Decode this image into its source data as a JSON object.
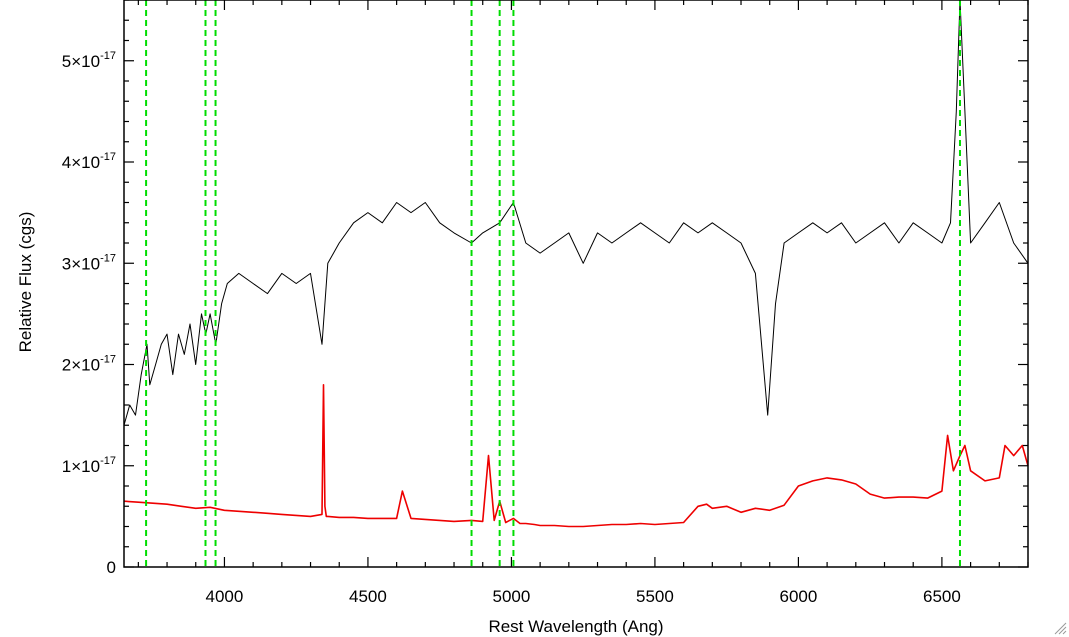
{
  "chart_data": {
    "type": "line",
    "title": "",
    "xlabel": "Rest Wavelength (Ang)",
    "ylabel": "Relative Flux (cgs)",
    "xlim": [
      3650,
      6800
    ],
    "ylim": [
      0,
      5.6e-17
    ],
    "x_ticks": [
      {
        "value": 4000,
        "label": "4000"
      },
      {
        "value": 4500,
        "label": "4500"
      },
      {
        "value": 5000,
        "label": "5000"
      },
      {
        "value": 5500,
        "label": "5500"
      },
      {
        "value": 6000,
        "label": "6000"
      },
      {
        "value": 6500,
        "label": "6500"
      }
    ],
    "y_ticks": [
      {
        "value": 0,
        "mantissa": "0",
        "exponent": ""
      },
      {
        "value": 1e-17,
        "mantissa": "1×10",
        "exponent": "-17"
      },
      {
        "value": 2e-17,
        "mantissa": "2×10",
        "exponent": "-17"
      },
      {
        "value": 3e-17,
        "mantissa": "3×10",
        "exponent": "-17"
      },
      {
        "value": 4e-17,
        "mantissa": "4×10",
        "exponent": "-17"
      },
      {
        "value": 5e-17,
        "mantissa": "5×10",
        "exponent": "-17"
      }
    ],
    "grid": false,
    "legend": "none",
    "vlines": {
      "color": "#00dd00",
      "style": "dashed",
      "x": [
        3727,
        3934,
        3969,
        4861,
        4959,
        5007,
        6563
      ]
    },
    "series": [
      {
        "color": "#000000",
        "x": [
          3650,
          3670,
          3690,
          3710,
          3730,
          3740,
          3760,
          3780,
          3800,
          3820,
          3840,
          3860,
          3880,
          3900,
          3920,
          3935,
          3950,
          3970,
          3990,
          4010,
          4050,
          4100,
          4150,
          4200,
          4250,
          4300,
          4340,
          4360,
          4400,
          4450,
          4500,
          4550,
          4600,
          4650,
          4700,
          4750,
          4800,
          4861,
          4900,
          4959,
          5007,
          5050,
          5100,
          5150,
          5200,
          5250,
          5300,
          5350,
          5400,
          5450,
          5500,
          5550,
          5600,
          5650,
          5700,
          5750,
          5800,
          5850,
          5893,
          5920,
          5950,
          6000,
          6050,
          6100,
          6150,
          6200,
          6250,
          6300,
          6350,
          6400,
          6450,
          6500,
          6530,
          6550,
          6563,
          6580,
          6600,
          6650,
          6700,
          6750,
          6800
        ],
        "y": [
          1.4e-17,
          1.6e-17,
          1.5e-17,
          1.9e-17,
          2.2e-17,
          1.8e-17,
          2e-17,
          2.2e-17,
          2.3e-17,
          1.9e-17,
          2.3e-17,
          2.1e-17,
          2.4e-17,
          2e-17,
          2.5e-17,
          2.3e-17,
          2.5e-17,
          2.2e-17,
          2.6e-17,
          2.8e-17,
          2.9e-17,
          2.8e-17,
          2.7e-17,
          2.9e-17,
          2.8e-17,
          2.9e-17,
          2.2e-17,
          3e-17,
          3.2e-17,
          3.4e-17,
          3.5e-17,
          3.4e-17,
          3.6e-17,
          3.5e-17,
          3.6e-17,
          3.4e-17,
          3.3e-17,
          3.2e-17,
          3.3e-17,
          3.4e-17,
          3.6e-17,
          3.2e-17,
          3.1e-17,
          3.2e-17,
          3.3e-17,
          3e-17,
          3.3e-17,
          3.2e-17,
          3.3e-17,
          3.4e-17,
          3.3e-17,
          3.2e-17,
          3.4e-17,
          3.3e-17,
          3.4e-17,
          3.3e-17,
          3.2e-17,
          2.9e-17,
          1.5e-17,
          2.6e-17,
          3.2e-17,
          3.3e-17,
          3.4e-17,
          3.3e-17,
          3.4e-17,
          3.2e-17,
          3.3e-17,
          3.4e-17,
          3.2e-17,
          3.4e-17,
          3.3e-17,
          3.2e-17,
          3.4e-17,
          4.5e-17,
          5.6e-17,
          4.5e-17,
          3.2e-17,
          3.4e-17,
          3.6e-17,
          3.2e-17,
          3e-17
        ]
      },
      {
        "color": "#ee0000",
        "x": [
          3650,
          3700,
          3750,
          3800,
          3850,
          3900,
          3950,
          4000,
          4050,
          4100,
          4150,
          4200,
          4250,
          4300,
          4340,
          4345,
          4350,
          4355,
          4360,
          4400,
          4450,
          4500,
          4550,
          4600,
          4620,
          4650,
          4700,
          4750,
          4800,
          4861,
          4900,
          4920,
          4940,
          4959,
          4980,
          5007,
          5030,
          5050,
          5080,
          5100,
          5150,
          5200,
          5250,
          5300,
          5350,
          5400,
          5450,
          5500,
          5550,
          5600,
          5650,
          5680,
          5700,
          5750,
          5800,
          5850,
          5900,
          5950,
          6000,
          6050,
          6100,
          6150,
          6200,
          6250,
          6300,
          6350,
          6400,
          6450,
          6500,
          6520,
          6540,
          6563,
          6580,
          6600,
          6650,
          6700,
          6720,
          6750,
          6780,
          6800
        ],
        "y": [
          6.5e-18,
          6.4e-18,
          6.3e-18,
          6.2e-18,
          6e-18,
          5.8e-18,
          5.9e-18,
          5.6e-18,
          5.5e-18,
          5.4e-18,
          5.3e-18,
          5.2e-18,
          5.1e-18,
          5e-18,
          5.2e-18,
          1.8e-17,
          6e-18,
          5e-18,
          5e-18,
          4.9e-18,
          4.9e-18,
          4.8e-18,
          4.8e-18,
          4.8e-18,
          7.5e-18,
          4.8e-18,
          4.7e-18,
          4.6e-18,
          4.5e-18,
          4.6e-18,
          4.5e-18,
          1.1e-17,
          4.6e-18,
          6.5e-18,
          4.4e-18,
          4.8e-18,
          4.3e-18,
          4.3e-18,
          4.2e-18,
          4.1e-18,
          4.1e-18,
          4e-18,
          4e-18,
          4.1e-18,
          4.2e-18,
          4.2e-18,
          4.3e-18,
          4.2e-18,
          4.3e-18,
          4.4e-18,
          6e-18,
          6.2e-18,
          5.8e-18,
          6e-18,
          5.4e-18,
          5.8e-18,
          5.6e-18,
          6.1e-18,
          8e-18,
          8.5e-18,
          8.8e-18,
          8.6e-18,
          8.2e-18,
          7.2e-18,
          6.8e-18,
          6.9e-18,
          6.9e-18,
          6.8e-18,
          7.5e-18,
          1.3e-17,
          9.5e-18,
          1.1e-17,
          1.2e-17,
          9.5e-18,
          8.5e-18,
          8.8e-18,
          1.2e-17,
          1.1e-17,
          1.2e-17,
          1e-17
        ]
      }
    ]
  }
}
